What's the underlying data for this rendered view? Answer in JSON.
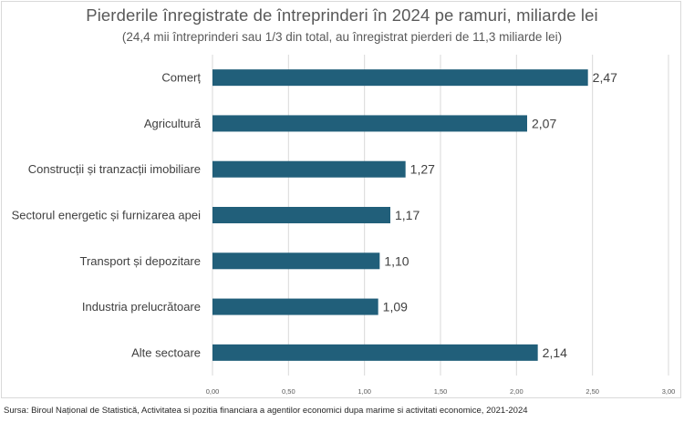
{
  "chart_data": {
    "type": "bar",
    "orientation": "horizontal",
    "title": "Pierderile înregistrate de întreprinderi în 2024 pe ramuri, miliarde lei",
    "subtitle": "(24,4 mii întreprinderi sau 1/3 din total,  au  înregistrat pierderi de 11,3 miliarde lei)",
    "categories": [
      "Comerț",
      "Agricultură",
      "Construcții și tranzacții imobiliare",
      "Sectorul energetic și furnizarea apei",
      "Transport și depozitare",
      "Industria prelucrătoare",
      "Alte sectoare"
    ],
    "values": [
      2.47,
      2.07,
      1.27,
      1.17,
      1.1,
      1.09,
      2.14
    ],
    "value_labels": [
      "2,47",
      "2,07",
      "1,27",
      "1,17",
      "1,10",
      "1,09",
      "2,14"
    ],
    "xlim": [
      0,
      3
    ],
    "xticks": [
      0,
      0.5,
      1,
      1.5,
      2,
      2.5,
      3
    ],
    "xtick_labels": [
      "0,00",
      "0,50",
      "1,00",
      "1,50",
      "2,00",
      "2,50",
      "3,00"
    ],
    "grid": "vertical",
    "legend": "none",
    "bar_color": "#215f7a",
    "grid_color": "#d9d9d9"
  },
  "source": "Sursa: Biroul Național de Statistică, Activitatea si pozitia financiara a agentilor economici dupa marime si activitati economice, 2021-2024"
}
